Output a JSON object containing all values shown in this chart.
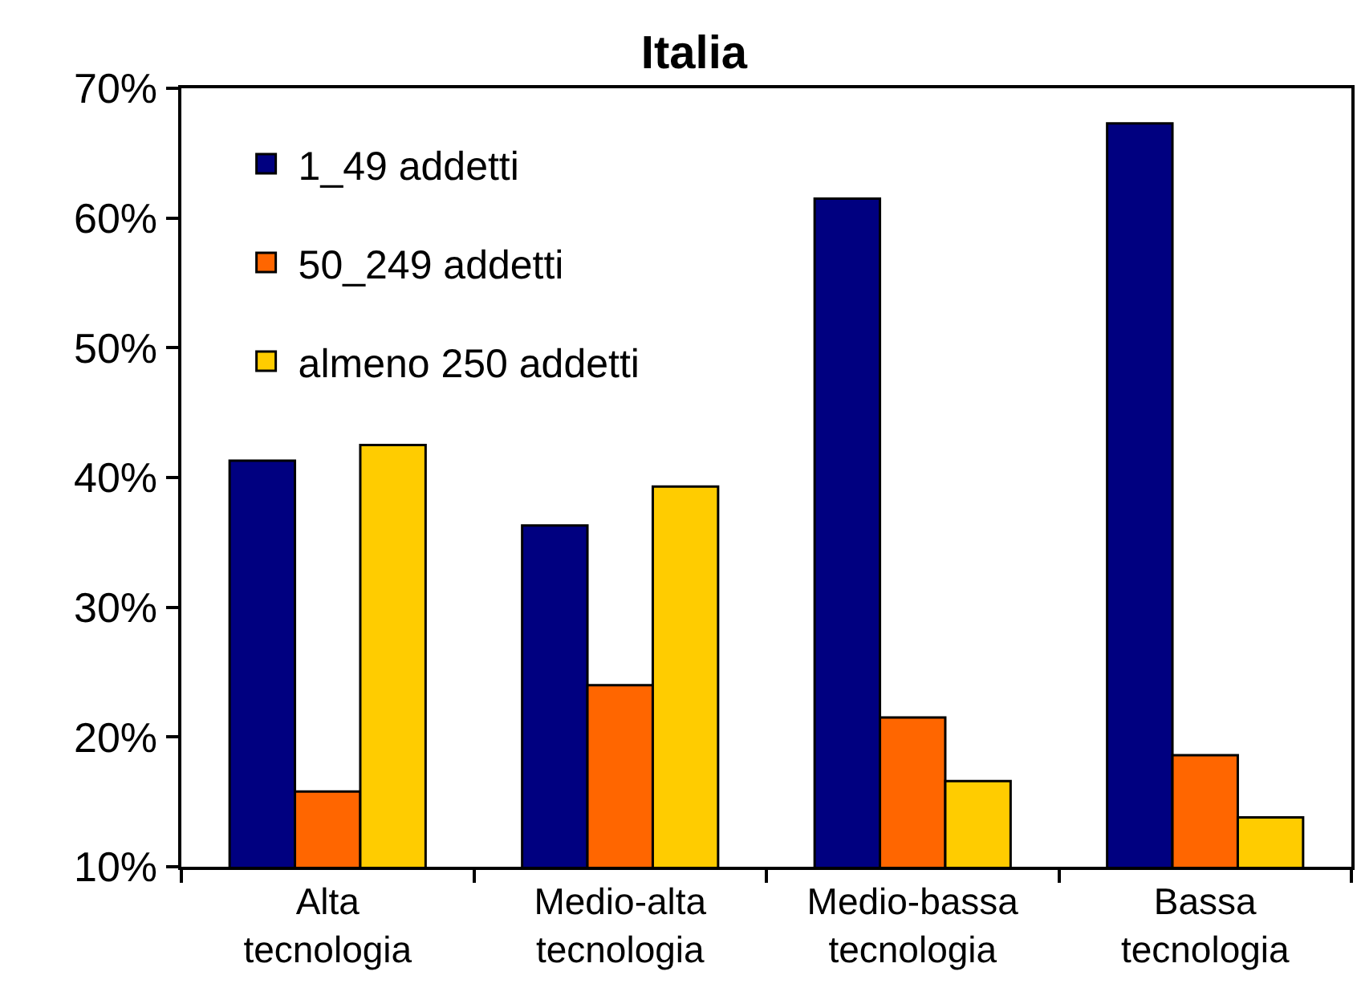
{
  "chart_data": {
    "type": "bar",
    "title": "Italia",
    "categories": [
      "Alta\ntecnologia",
      "Medio-alta\ntecnologia",
      "Medio-bassa\ntecnologia",
      "Bassa\ntecnologia"
    ],
    "series": [
      {
        "name": "1_49 addetti",
        "color": "#000080",
        "values": [
          41.3,
          36.3,
          61.5,
          67.3
        ]
      },
      {
        "name": "50_249 addetti",
        "color": "#ff6600",
        "values": [
          15.8,
          24.0,
          21.5,
          18.6
        ]
      },
      {
        "name": "almeno 250 addetti",
        "color": "#ffcc00",
        "values": [
          42.5,
          39.3,
          16.6,
          13.8
        ]
      }
    ],
    "ylim": [
      10,
      70
    ],
    "yticks": [
      {
        "value": 10,
        "label": "10%"
      },
      {
        "value": 20,
        "label": "20%"
      },
      {
        "value": 30,
        "label": "30%"
      },
      {
        "value": 40,
        "label": "40%"
      },
      {
        "value": 50,
        "label": "50%"
      },
      {
        "value": 60,
        "label": "60%"
      },
      {
        "value": 70,
        "label": "70%"
      }
    ],
    "grid": false,
    "legend": "top left"
  }
}
